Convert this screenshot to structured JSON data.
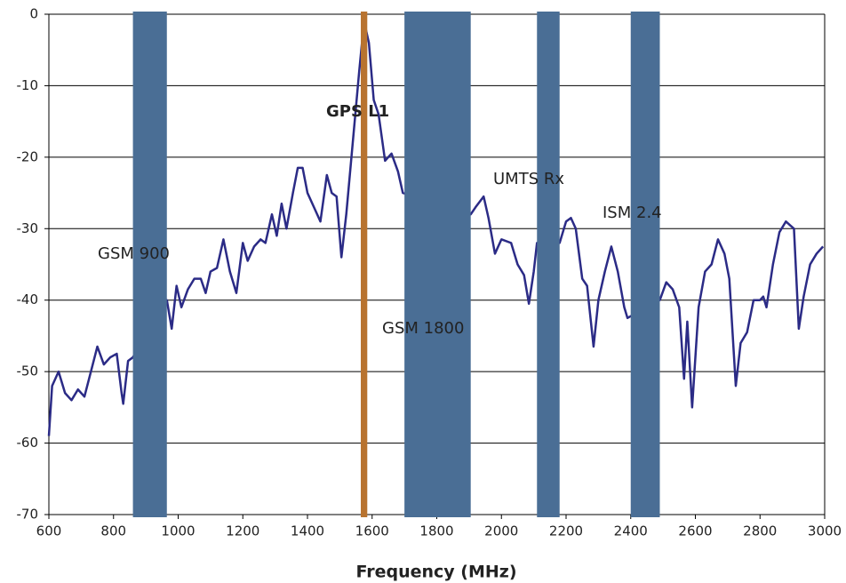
{
  "chart_data": {
    "type": "line",
    "xlabel": "Frequency (MHz)",
    "color": "#2b2b86",
    "x": [
      600,
      610,
      630,
      650,
      670,
      690,
      710,
      730,
      750,
      770,
      790,
      810,
      825,
      830,
      845,
      860,
      965,
      980,
      995,
      1010,
      1030,
      1050,
      1070,
      1085,
      1100,
      1120,
      1140,
      1160,
      1180,
      1200,
      1215,
      1235,
      1255,
      1270,
      1290,
      1305,
      1320,
      1335,
      1355,
      1370,
      1385,
      1400,
      1420,
      1440,
      1460,
      1475,
      1490,
      1505,
      1520,
      1540,
      1560,
      1575,
      1590,
      1605,
      1620,
      1640,
      1660,
      1680,
      1695,
      1905,
      1920,
      1945,
      1960,
      1980,
      2000,
      2030,
      2050,
      2070,
      2085,
      2100,
      2110,
      2180,
      2200,
      2215,
      2230,
      2250,
      2265,
      2285,
      2300,
      2320,
      2340,
      2360,
      2380,
      2390,
      2490,
      2510,
      2530,
      2550,
      2565,
      2575,
      2590,
      2610,
      2630,
      2650,
      2670,
      2690,
      2705,
      2725,
      2740,
      2760,
      2780,
      2800,
      2810,
      2820,
      2840,
      2860,
      2880,
      2905,
      2920,
      2935,
      2955,
      2975,
      2995
    ],
    "values": [
      -59,
      -52,
      -50,
      -53,
      -54,
      -52.5,
      -53.5,
      -50,
      -46.5,
      -49,
      -48,
      -47.5,
      -53,
      -54.5,
      -48.5,
      -48,
      -40,
      -44,
      -38,
      -41,
      -38.5,
      -37,
      -37,
      -39,
      -36,
      -35.5,
      -31.5,
      -36,
      -39,
      -32,
      -34.5,
      -32.5,
      -31.5,
      -32,
      -28,
      -31,
      -26.5,
      -30,
      -25,
      -21.5,
      -21.5,
      -25,
      -27,
      -29,
      -22.5,
      -25,
      -25.5,
      -34,
      -28,
      -18,
      -8,
      -1,
      -4,
      -12,
      -14,
      -20.5,
      -19.5,
      -22,
      -25,
      -28,
      -27,
      -25.5,
      -28.5,
      -33.5,
      -31.5,
      -32,
      -35,
      -36.5,
      -40.5,
      -36,
      -32,
      -32,
      -29,
      -28.5,
      -30,
      -37,
      -38,
      -46.5,
      -40,
      -36,
      -32.5,
      -36,
      -41,
      -42.5,
      -40,
      -37.5,
      -38.5,
      -41,
      -51,
      -43,
      -55,
      -41,
      -36,
      -35,
      -31.5,
      -33.5,
      -37,
      -52,
      -46,
      -44.5,
      -40,
      -40,
      -39.5,
      -41,
      -35,
      -30.5,
      -29,
      -30,
      -44,
      -39.5,
      -35,
      -33.5,
      -32.5
    ],
    "bands": [
      {
        "label": "GSM 900",
        "start": 860,
        "end": 965,
        "color": "#4a6e95"
      },
      {
        "label": "GPS L1",
        "start": 1565,
        "end": 1585,
        "color": "#b8732f"
      },
      {
        "label": "GSM 1800",
        "start": 1700,
        "end": 1905,
        "color": "#4a6e95"
      },
      {
        "label": "UMTS Rx",
        "start": 2110,
        "end": 2180,
        "color": "#4a6e95"
      },
      {
        "label": "ISM 2.4",
        "start": 2400,
        "end": 2490,
        "color": "#4a6e95"
      }
    ],
    "xlim": [
      600,
      3000
    ],
    "ylim": [
      -70,
      0
    ],
    "xticks": [
      600,
      800,
      1000,
      1200,
      1400,
      1600,
      1800,
      2000,
      2200,
      2400,
      2600,
      2800,
      3000
    ],
    "yticks": [
      0,
      -10,
      -20,
      -30,
      -40,
      -50,
      -60,
      -70
    ],
    "grid": true
  }
}
